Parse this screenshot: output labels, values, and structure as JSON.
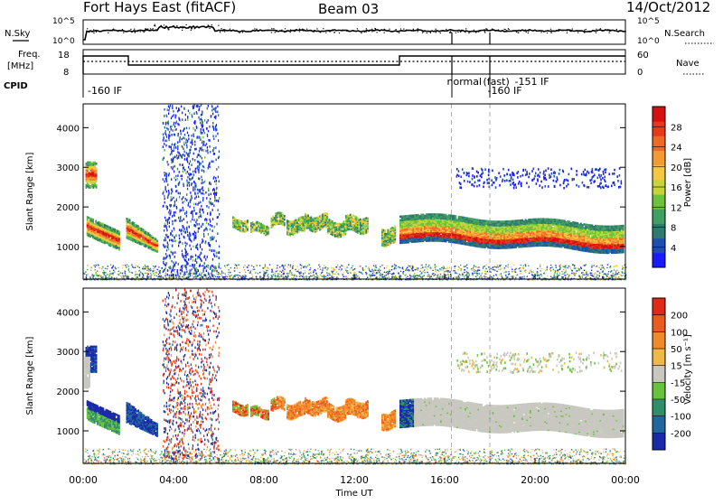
{
  "header": {
    "radar": "Fort Hays East (fitACF)",
    "beam": "Beam 03",
    "date": "14/Oct/2012"
  },
  "noise_panel": {
    "left_label": "N.Sky",
    "right_label": "N.Search",
    "left_ticks": [
      "10^5",
      "10^0"
    ],
    "right_ticks": [
      "10^5",
      "10^0"
    ]
  },
  "freq_panel": {
    "left_label_top": "Freq.",
    "left_label_bottom": "[MHz]",
    "right_label": "Nave",
    "left_ticks": [
      "18",
      "8"
    ],
    "right_ticks": [
      "60",
      "0"
    ]
  },
  "cpid": {
    "label": "CPID",
    "annotations": [
      {
        "text": "-160 IF",
        "hour": 0.2,
        "row": 1
      },
      {
        "text": "normal",
        "hour": 16.1,
        "row": 0
      },
      {
        "text": "(fast)",
        "hour": 17.7,
        "row": 0
      },
      {
        "text": "-151 IF",
        "hour": 19.1,
        "row": 0
      },
      {
        "text": "-160 IF",
        "hour": 17.9,
        "row": 1
      }
    ]
  },
  "axes": {
    "xlabel": "Time UT",
    "xticks": [
      "00:00",
      "04:00",
      "08:00",
      "12:00",
      "16:00",
      "20:00",
      "00:00"
    ],
    "ylabel": "Slant Range [km]",
    "yticks": [
      "1000",
      "2000",
      "3000",
      "4000"
    ]
  },
  "chart_data": [
    {
      "type": "heatmap",
      "name": "power",
      "x_range_hours": [
        0,
        24
      ],
      "y_range_km": [
        180,
        4600
      ],
      "colorbar": {
        "label": "Power [dB]",
        "ticks": [
          "4",
          "8",
          "12",
          "16",
          "20",
          "24",
          "28"
        ],
        "colors": [
          "#1a1aff",
          "#1e4fb0",
          "#2f7a6f",
          "#3fa060",
          "#6cc23a",
          "#c6d43a",
          "#f5c842",
          "#f39a32",
          "#ef6a26",
          "#e63a1a",
          "#d41010"
        ]
      }
    },
    {
      "type": "heatmap",
      "name": "velocity",
      "x_range_hours": [
        0,
        24
      ],
      "y_range_km": [
        180,
        4600
      ],
      "colorbar": {
        "label": "Velocity [m s⁻¹]",
        "ticks": [
          "200",
          "100",
          "50",
          "15",
          "-15",
          "-50",
          "-100",
          "-200"
        ],
        "colors": [
          "#1a2aa8",
          "#2066a0",
          "#2f8f6a",
          "#68c23c",
          "#c8c8c0",
          "#f0b848",
          "#f18a2a",
          "#ec5a20",
          "#e02a18"
        ]
      }
    }
  ],
  "colors": {
    "frame": "#000000",
    "scatter_blue": "#1e40c0",
    "gray": "#c8c8c0"
  }
}
